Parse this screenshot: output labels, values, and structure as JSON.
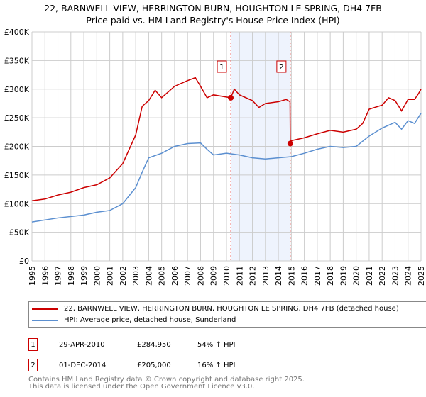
{
  "chart_data": {
    "type": "line",
    "title": "22, BARNWELL VIEW, HERRINGTON BURN, HOUGHTON LE SPRING, DH4 7FB",
    "subtitle": "Price paid vs. HM Land Registry's House Price Index (HPI)",
    "xlim": [
      1995,
      2025
    ],
    "ylim": [
      0,
      400000
    ],
    "x_ticks": [
      "1995",
      "1996",
      "1997",
      "1998",
      "1999",
      "2000",
      "2001",
      "2002",
      "2003",
      "2004",
      "2005",
      "2006",
      "2007",
      "2008",
      "2009",
      "2010",
      "2011",
      "2012",
      "2013",
      "2014",
      "2015",
      "2016",
      "2017",
      "2018",
      "2019",
      "2020",
      "2021",
      "2022",
      "2023",
      "2024",
      "2025"
    ],
    "y_ticks": [
      {
        "v": 0,
        "l": "£0"
      },
      {
        "v": 50000,
        "l": "£50K"
      },
      {
        "v": 100000,
        "l": "£100K"
      },
      {
        "v": 150000,
        "l": "£150K"
      },
      {
        "v": 200000,
        "l": "£200K"
      },
      {
        "v": 250000,
        "l": "£250K"
      },
      {
        "v": 300000,
        "l": "£300K"
      },
      {
        "v": 350000,
        "l": "£350K"
      },
      {
        "v": 400000,
        "l": "£400K"
      }
    ],
    "grid": true,
    "series": [
      {
        "name": "22, BARNWELL VIEW, HERRINGTON BURN, HOUGHTON LE SPRING, DH4 7FB (detached house)",
        "color": "#cc0000",
        "x": [
          1995,
          1996,
          1997,
          1998,
          1999,
          2000,
          2001,
          2002,
          2002.5,
          2003,
          2003.5,
          2004,
          2004.5,
          2005,
          2006,
          2007,
          2007.6,
          2008,
          2008.5,
          2009,
          2010.33,
          2010.6,
          2011,
          2012,
          2012.5,
          2013,
          2014,
          2014.6,
          2014.9,
          2014.92,
          2015,
          2016,
          2017,
          2018,
          2019,
          2020,
          2020.5,
          2021,
          2022,
          2022.5,
          2023,
          2023.5,
          2024,
          2024.5,
          2024.8,
          2025
        ],
        "y": [
          105000,
          108000,
          115000,
          120000,
          128000,
          133000,
          145000,
          170000,
          195000,
          220000,
          270000,
          280000,
          298000,
          285000,
          305000,
          315000,
          320000,
          305000,
          285000,
          290000,
          285000,
          300000,
          290000,
          280000,
          268000,
          275000,
          278000,
          282000,
          278000,
          205000,
          210000,
          215000,
          222000,
          228000,
          225000,
          230000,
          240000,
          265000,
          272000,
          285000,
          280000,
          262000,
          282000,
          282000,
          292000,
          300000
        ]
      },
      {
        "name": "HPI: Average price, detached house, Sunderland",
        "color": "#5b8fd0",
        "x": [
          1995,
          1997,
          1999,
          2000,
          2001,
          2002,
          2003,
          2003.5,
          2004,
          2005,
          2006,
          2007,
          2008,
          2008.5,
          2009,
          2010,
          2011,
          2012,
          2013,
          2014,
          2015,
          2016,
          2017,
          2018,
          2019,
          2020,
          2021,
          2022,
          2023,
          2023.5,
          2024,
          2024.5,
          2025
        ],
        "y": [
          68000,
          75000,
          80000,
          85000,
          88000,
          100000,
          128000,
          155000,
          180000,
          188000,
          200000,
          205000,
          206000,
          195000,
          185000,
          188000,
          185000,
          180000,
          178000,
          180000,
          182000,
          188000,
          195000,
          200000,
          198000,
          200000,
          218000,
          232000,
          242000,
          230000,
          245000,
          240000,
          258000
        ]
      }
    ],
    "shaded_range": [
      2010.33,
      2014.92
    ],
    "annotations": [
      {
        "label": "1",
        "x": 2010.33,
        "y": 284950
      },
      {
        "label": "2",
        "x": 2014.92,
        "y": 205000
      }
    ]
  },
  "legend": {
    "property": "22, BARNWELL VIEW, HERRINGTON BURN, HOUGHTON LE SPRING, DH4 7FB (detached house)",
    "hpi": "HPI: Average price, detached house, Sunderland"
  },
  "transactions": [
    {
      "n": "1",
      "date": "29-APR-2010",
      "price": "£284,950",
      "hpi": "54% ↑ HPI"
    },
    {
      "n": "2",
      "date": "01-DEC-2014",
      "price": "£205,000",
      "hpi": "16% ↑ HPI"
    }
  ],
  "footer": {
    "line1": "Contains HM Land Registry data © Crown copyright and database right 2025.",
    "line2": "This data is licensed under the Open Government Licence v3.0."
  }
}
